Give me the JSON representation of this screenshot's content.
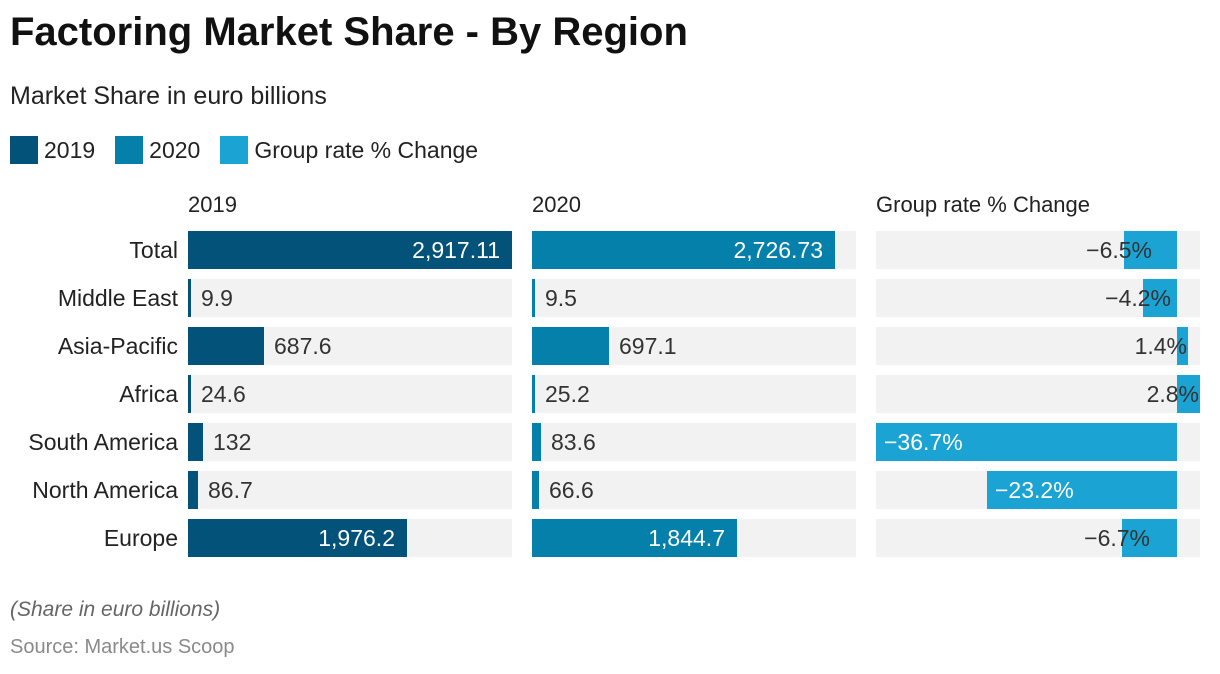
{
  "title": "Factoring Market Share - By Region",
  "subtitle": "Market Share in euro billions",
  "legend": [
    {
      "label": "2019",
      "color": "#03527a"
    },
    {
      "label": "2020",
      "color": "#0480aa"
    },
    {
      "label": "Group rate % Change",
      "color": "#1ba3d3"
    }
  ],
  "note": "(Share in euro billions)",
  "source": "Source: Market.us Scoop",
  "chart_data": {
    "type": "bar",
    "categories": [
      "Total",
      "Middle East",
      "Asia-Pacific",
      "Africa",
      "South America",
      "North America",
      "Europe"
    ],
    "columns": [
      {
        "name": "2019",
        "header": "2019",
        "color": "#03527a",
        "values": [
          2917.11,
          9.9,
          687.6,
          24.6,
          132,
          86.7,
          1976.2
        ],
        "labels": [
          "2,917.11",
          "9.9",
          "687.6",
          "24.6",
          "132",
          "86.7",
          "1,976.2"
        ],
        "xlim": [
          0,
          2917.11
        ]
      },
      {
        "name": "2020",
        "header": "2020",
        "color": "#0480aa",
        "values": [
          2726.73,
          9.5,
          697.1,
          25.2,
          83.6,
          66.6,
          1844.7
        ],
        "labels": [
          "2,726.73",
          "9.5",
          "697.1",
          "25.2",
          "83.6",
          "66.6",
          "1,844.7"
        ],
        "xlim": [
          0,
          2917.11
        ]
      },
      {
        "name": "Group rate % Change",
        "header": "Group rate % Change",
        "color": "#1ba3d3",
        "values": [
          -6.5,
          -4.2,
          1.4,
          2.8,
          -36.7,
          -23.2,
          -6.7
        ],
        "labels": [
          "−6.5",
          "−4.2",
          "1.4",
          "2.8",
          "−36.7",
          "−23.2",
          "−6.7"
        ],
        "unit": "%",
        "xlim": [
          -36.7,
          2.8
        ]
      }
    ]
  }
}
